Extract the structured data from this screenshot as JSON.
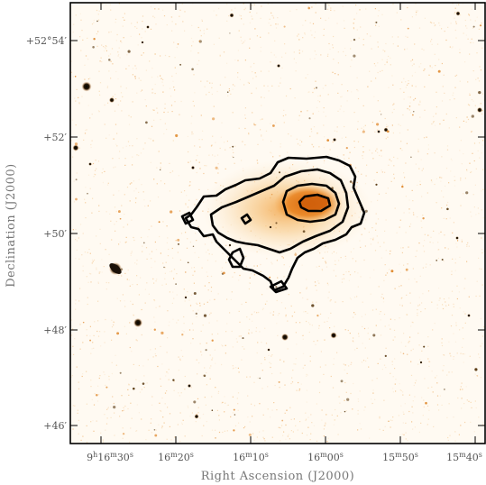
{
  "figure": {
    "x_axis_title": "Right Ascension (J2000)",
    "y_axis_title": "Declination (J2000)",
    "ra_ticks": [
      {
        "pre": "9",
        "h": "h",
        "mid": "16",
        "m": "m",
        "sec": "30",
        "s": "s"
      },
      {
        "pre": "",
        "h": "",
        "mid": "16",
        "m": "m",
        "sec": "20",
        "s": "s"
      },
      {
        "pre": "",
        "h": "",
        "mid": "16",
        "m": "m",
        "sec": "10",
        "s": "s"
      },
      {
        "pre": "",
        "h": "",
        "mid": "16",
        "m": "m",
        "sec": "00",
        "s": "s"
      },
      {
        "pre": "",
        "h": "",
        "mid": "15",
        "m": "m",
        "sec": "50",
        "s": "s"
      },
      {
        "pre": "",
        "h": "",
        "mid": "15",
        "m": "m",
        "sec": "40",
        "s": "s"
      }
    ],
    "dec_ticks": [
      {
        "label": "+52°54′"
      },
      {
        "label": "+52′"
      },
      {
        "label": "+50′"
      },
      {
        "label": "+48′"
      },
      {
        "label": "+46′"
      }
    ],
    "colors": {
      "background": "#fffaf2",
      "galaxy_core": "#e8801c",
      "galaxy_halo": "#f6c37a",
      "contour": "#000000",
      "stars": "#3a2a10"
    }
  }
}
